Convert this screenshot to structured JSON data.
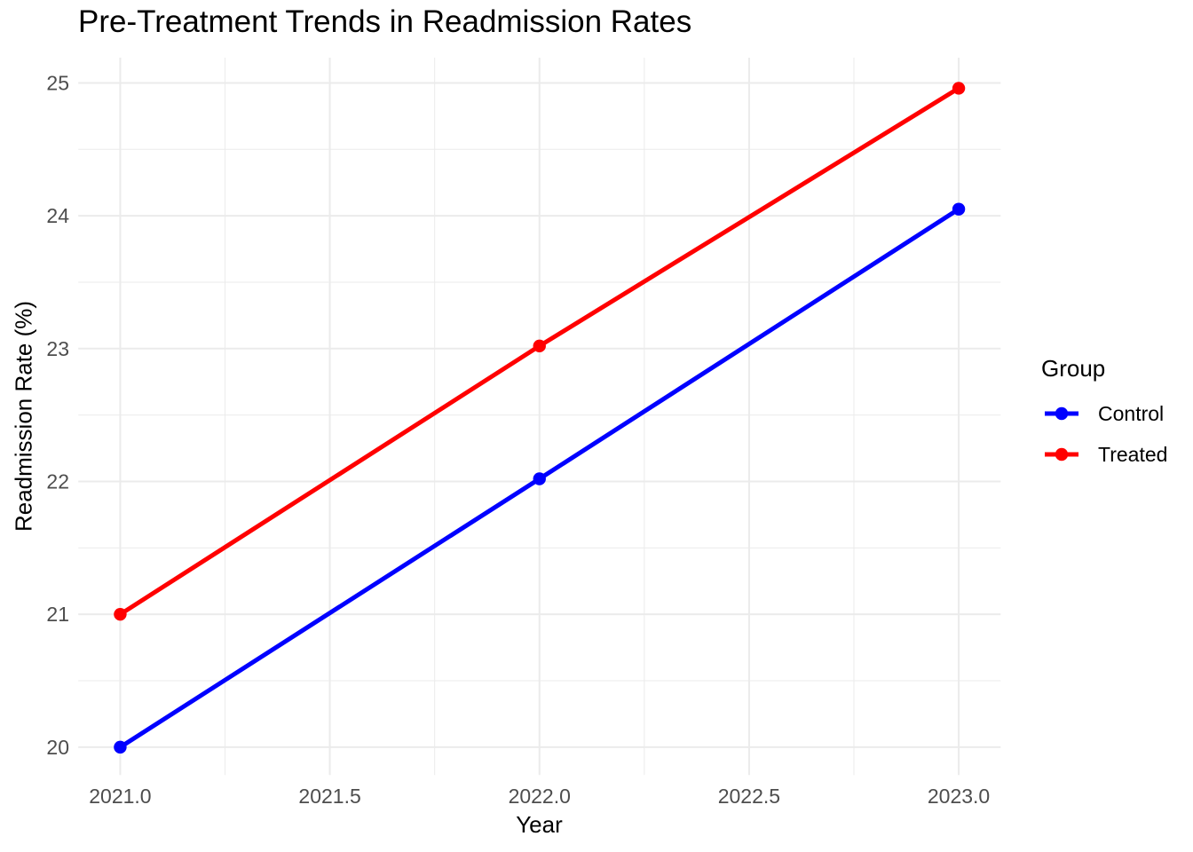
{
  "title": "Pre-Treatment Trends in Readmission Rates",
  "chart_data": {
    "type": "line",
    "title": "Pre-Treatment Trends in Readmission Rates",
    "xlabel": "Year",
    "ylabel": "Readmission Rate (%)",
    "x": [
      2021.0,
      2022.0,
      2023.0
    ],
    "series": [
      {
        "name": "Control",
        "color": "#0000FF",
        "values": [
          20.0,
          22.02,
          24.05
        ]
      },
      {
        "name": "Treated",
        "color": "#FF0000",
        "values": [
          21.0,
          23.02,
          24.96
        ]
      }
    ],
    "legend_title": "Group",
    "legend_position": "right",
    "xlim": [
      2020.9,
      2023.1
    ],
    "ylim": [
      19.79,
      25.19
    ],
    "x_ticks": {
      "values": [
        2021.0,
        2021.5,
        2022.0,
        2022.5,
        2023.0
      ],
      "labels": [
        "2021.0",
        "2021.5",
        "2022.0",
        "2022.5",
        "2023.0"
      ]
    },
    "y_ticks": {
      "values": [
        20,
        21,
        22,
        23,
        24,
        25
      ],
      "labels": [
        "20",
        "21",
        "22",
        "23",
        "24",
        "25"
      ]
    },
    "x_minor_gridlines": [
      2021.25,
      2021.75,
      2022.25,
      2022.75
    ],
    "y_minor_gridlines": [
      20.5,
      21.5,
      22.5,
      23.5,
      24.5
    ],
    "grid": true,
    "marker": "circle",
    "colors": {
      "background": "#FFFFFF",
      "gridline": "#EBEBEB",
      "tick_label": "#4D4D4D",
      "text": "#000000"
    }
  }
}
